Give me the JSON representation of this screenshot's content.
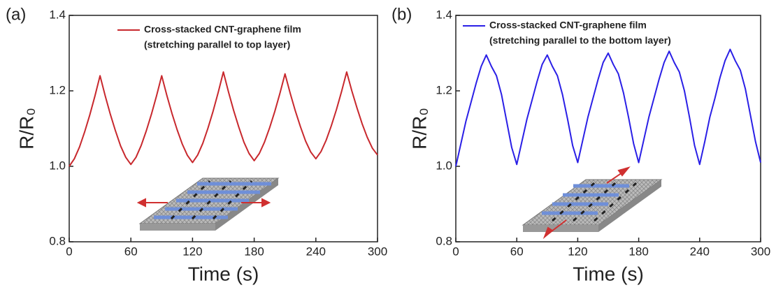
{
  "chart_data": [
    {
      "type": "line",
      "panel_label": "(a)",
      "xlabel": "Time (s)",
      "ylabel": "R/R₀",
      "xlim": [
        0,
        300
      ],
      "xticks": [
        0,
        60,
        120,
        180,
        240,
        300
      ],
      "ylim": [
        0.8,
        1.4
      ],
      "yticks": [
        0.8,
        {
          "value": 1,
          "label": "1.0"
        },
        1.2,
        1.4
      ],
      "legend_subtitle": "(stretching parallel to top layer)",
      "x": [
        0,
        5,
        10,
        15,
        20,
        25,
        30,
        35,
        40,
        45,
        50,
        55,
        60,
        65,
        70,
        75,
        80,
        85,
        90,
        95,
        100,
        105,
        110,
        115,
        120,
        125,
        130,
        135,
        140,
        145,
        150,
        155,
        160,
        165,
        170,
        175,
        180,
        185,
        190,
        195,
        200,
        205,
        210,
        215,
        220,
        225,
        230,
        235,
        240,
        245,
        250,
        255,
        260,
        265,
        270,
        275,
        280,
        285,
        290,
        295,
        300
      ],
      "series": [
        {
          "name": "Cross-stacked CNT-graphene film",
          "color": "#c8282d",
          "values": [
            1.0,
            1.02,
            1.051,
            1.091,
            1.136,
            1.186,
            1.24,
            1.187,
            1.138,
            1.094,
            1.054,
            1.024,
            1.005,
            1.024,
            1.055,
            1.094,
            1.138,
            1.187,
            1.24,
            1.188,
            1.14,
            1.097,
            1.059,
            1.029,
            1.01,
            1.03,
            1.061,
            1.101,
            1.146,
            1.196,
            1.25,
            1.197,
            1.148,
            1.104,
            1.064,
            1.034,
            1.015,
            1.034,
            1.064,
            1.102,
            1.145,
            1.193,
            1.245,
            1.194,
            1.147,
            1.105,
            1.067,
            1.038,
            1.02,
            1.039,
            1.069,
            1.107,
            1.15,
            1.198,
            1.25,
            1.2,
            1.155,
            1.113,
            1.077,
            1.048,
            1.03
          ]
        }
      ]
    },
    {
      "type": "line",
      "panel_label": "(b)",
      "xlabel": "Time (s)",
      "ylabel": "R/R₀",
      "xlim": [
        0,
        300
      ],
      "xticks": [
        0,
        60,
        120,
        180,
        240,
        300
      ],
      "ylim": [
        0.8,
        1.4
      ],
      "yticks": [
        0.8,
        {
          "value": 1,
          "label": "1.0"
        },
        1.2,
        1.4
      ],
      "legend_subtitle": "(stretching parallel to the bottom layer)",
      "x": [
        0,
        5,
        10,
        15,
        20,
        25,
        30,
        35,
        40,
        45,
        50,
        55,
        60,
        65,
        70,
        75,
        80,
        85,
        90,
        95,
        100,
        105,
        110,
        115,
        120,
        125,
        130,
        135,
        140,
        145,
        150,
        155,
        160,
        165,
        170,
        175,
        180,
        185,
        190,
        195,
        200,
        205,
        210,
        215,
        220,
        225,
        230,
        235,
        240,
        245,
        250,
        255,
        260,
        265,
        270,
        275,
        280,
        285,
        290,
        295,
        300
      ],
      "series": [
        {
          "name": "Cross-stacked CNT-graphene film",
          "color": "#2a1fe6",
          "values": [
            1.0,
            1.06,
            1.12,
            1.17,
            1.22,
            1.265,
            1.295,
            1.265,
            1.24,
            1.19,
            1.12,
            1.05,
            1.005,
            1.065,
            1.125,
            1.175,
            1.225,
            1.27,
            1.295,
            1.265,
            1.24,
            1.19,
            1.125,
            1.055,
            1.01,
            1.07,
            1.13,
            1.18,
            1.23,
            1.275,
            1.3,
            1.27,
            1.245,
            1.195,
            1.13,
            1.06,
            1.01,
            1.07,
            1.13,
            1.18,
            1.23,
            1.275,
            1.305,
            1.275,
            1.25,
            1.2,
            1.13,
            1.055,
            1.005,
            1.065,
            1.13,
            1.18,
            1.235,
            1.28,
            1.31,
            1.28,
            1.255,
            1.205,
            1.135,
            1.065,
            1.01
          ]
        }
      ]
    }
  ]
}
